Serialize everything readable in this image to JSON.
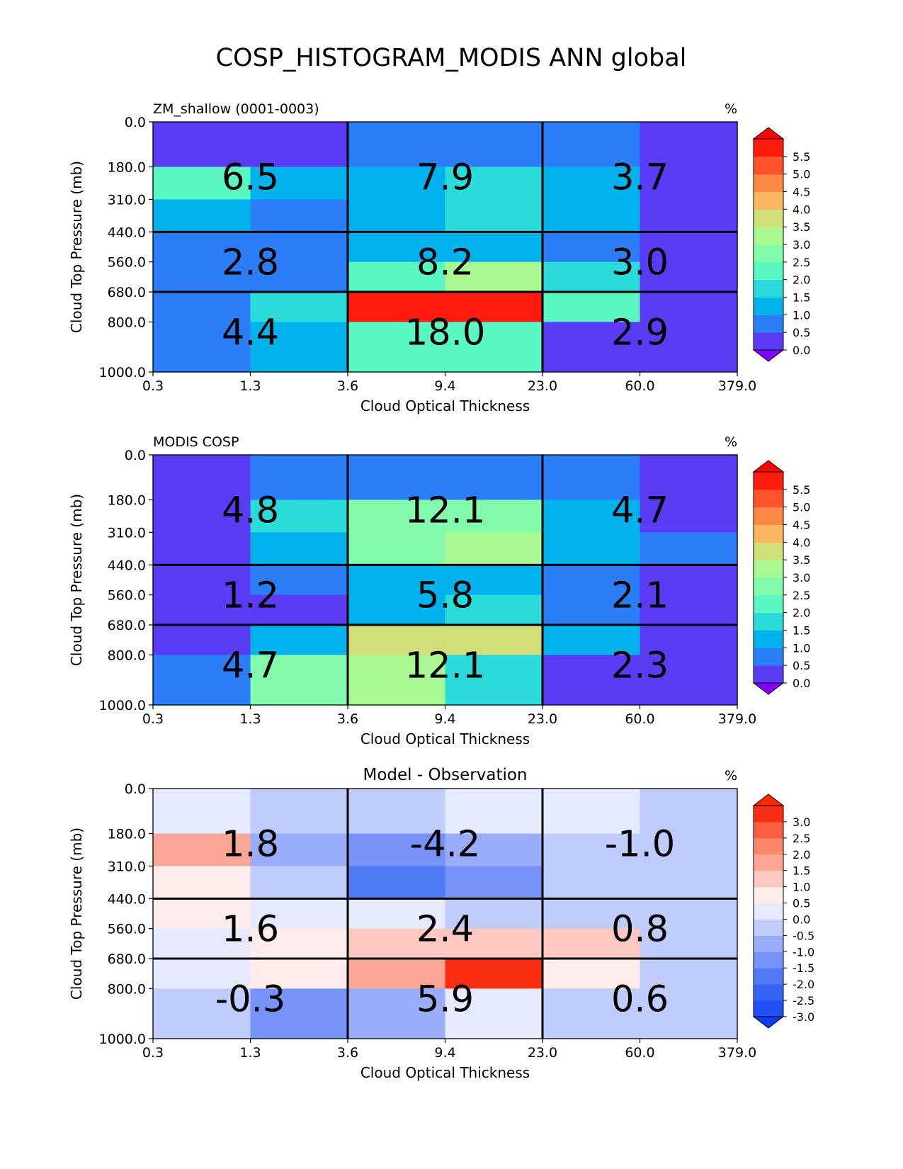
{
  "figure": {
    "title": "COSP_HISTOGRAM_MODIS ANN global"
  },
  "chart_data": [
    {
      "type": "heatmap",
      "title": "ZM_shallow (0001-0003)",
      "title_position": "left",
      "units": "%",
      "xlabel": "Cloud Optical Thickness",
      "ylabel": "Cloud Top Pressure (mb)",
      "x_ticks": [
        "0.3",
        "1.3",
        "3.6",
        "9.4",
        "23.0",
        "60.0",
        "379.0"
      ],
      "y_ticks": [
        "0.0",
        "180.0",
        "310.0",
        "440.0",
        "560.0",
        "680.0",
        "800.0",
        "1000.0"
      ],
      "cell_values": [
        [
          0.2,
          0.2,
          0.8,
          0.8,
          0.8,
          0.2
        ],
        [
          2.0,
          1.4,
          1.4,
          1.8,
          1.4,
          0.2
        ],
        [
          1.4,
          0.8,
          1.4,
          1.8,
          1.4,
          0.2
        ],
        [
          0.8,
          0.8,
          1.4,
          1.4,
          0.8,
          0.2
        ],
        [
          0.8,
          0.8,
          2.2,
          3.2,
          1.8,
          0.2
        ],
        [
          0.8,
          1.8,
          5.8,
          5.8,
          2.2,
          0.2
        ],
        [
          0.8,
          1.4,
          2.2,
          2.2,
          0.2,
          0.2
        ]
      ],
      "group_totals": [
        [
          "6.5",
          "7.9",
          "3.7"
        ],
        [
          "2.8",
          "8.2",
          "3.0"
        ],
        [
          "4.4",
          "18.0",
          "2.9"
        ]
      ],
      "colorbar": {
        "ticks": [
          "0.0",
          "0.5",
          "1.0",
          "1.5",
          "2.0",
          "2.5",
          "3.0",
          "3.5",
          "4.0",
          "4.5",
          "5.0",
          "5.5"
        ],
        "colors": [
          "#5a3cf7",
          "#2c7ef8",
          "#02b2ec",
          "#2bdbd9",
          "#59f8c3",
          "#82fcaa",
          "#aaf891",
          "#d1de79",
          "#fbb761",
          "#ff8847",
          "#ff532c",
          "#ff1c0f"
        ],
        "under_color": "#8000ff",
        "over_color": "#ff0000"
      }
    },
    {
      "type": "heatmap",
      "title": "MODIS COSP",
      "title_position": "left",
      "units": "%",
      "xlabel": "Cloud Optical Thickness",
      "ylabel": "Cloud Top Pressure (mb)",
      "x_ticks": [
        "0.3",
        "1.3",
        "3.6",
        "9.4",
        "23.0",
        "60.0",
        "379.0"
      ],
      "y_ticks": [
        "0.0",
        "180.0",
        "310.0",
        "440.0",
        "560.0",
        "680.0",
        "800.0",
        "1000.0"
      ],
      "cell_values": [
        [
          0.2,
          0.8,
          0.8,
          0.8,
          0.8,
          0.2
        ],
        [
          0.2,
          1.8,
          2.8,
          2.8,
          1.4,
          0.2
        ],
        [
          0.2,
          1.4,
          2.8,
          3.2,
          1.4,
          0.8
        ],
        [
          0.2,
          0.8,
          1.4,
          1.4,
          0.8,
          0.2
        ],
        [
          0.2,
          0.2,
          1.4,
          1.8,
          0.8,
          0.2
        ],
        [
          0.2,
          1.4,
          3.8,
          3.8,
          1.4,
          0.2
        ],
        [
          0.8,
          2.8,
          3.2,
          1.8,
          0.2,
          0.2
        ]
      ],
      "group_totals": [
        [
          "4.8",
          "12.1",
          "4.7"
        ],
        [
          "1.2",
          "5.8",
          "2.1"
        ],
        [
          "4.7",
          "12.1",
          "2.3"
        ]
      ],
      "colorbar": {
        "ticks": [
          "0.0",
          "0.5",
          "1.0",
          "1.5",
          "2.0",
          "2.5",
          "3.0",
          "3.5",
          "4.0",
          "4.5",
          "5.0",
          "5.5"
        ],
        "colors": [
          "#5a3cf7",
          "#2c7ef8",
          "#02b2ec",
          "#2bdbd9",
          "#59f8c3",
          "#82fcaa",
          "#aaf891",
          "#d1de79",
          "#fbb761",
          "#ff8847",
          "#ff532c",
          "#ff1c0f"
        ],
        "under_color": "#8000ff",
        "over_color": "#ff0000"
      }
    },
    {
      "type": "heatmap",
      "title": "Model - Observation",
      "title_position": "center",
      "units": "%",
      "xlabel": "Cloud Optical Thickness",
      "ylabel": "Cloud Top Pressure (mb)",
      "x_ticks": [
        "0.3",
        "1.3",
        "3.6",
        "9.4",
        "23.0",
        "60.0",
        "379.0"
      ],
      "y_ticks": [
        "0.0",
        "180.0",
        "310.0",
        "440.0",
        "560.0",
        "680.0",
        "800.0",
        "1000.0"
      ],
      "cell_values": [
        [
          0.2,
          -0.2,
          -0.2,
          0.2,
          0.2,
          -0.2
        ],
        [
          1.7,
          -0.8,
          -1.3,
          -0.8,
          -0.2,
          -0.2
        ],
        [
          0.7,
          -0.2,
          -1.7,
          -1.3,
          -0.2,
          -0.2
        ],
        [
          0.7,
          0.2,
          0.2,
          -0.2,
          -0.2,
          -0.2
        ],
        [
          0.2,
          0.7,
          1.2,
          1.2,
          1.2,
          -0.2
        ],
        [
          0.2,
          0.7,
          1.7,
          3.2,
          0.7,
          -0.2
        ],
        [
          -0.2,
          -1.3,
          -0.8,
          0.2,
          -0.2,
          -0.2
        ]
      ],
      "group_totals": [
        [
          "1.8",
          "-4.2",
          "-1.0"
        ],
        [
          "1.6",
          "2.4",
          "0.8"
        ],
        [
          "-0.3",
          "5.9",
          "0.6"
        ]
      ],
      "colorbar": {
        "ticks": [
          "-3.0",
          "-2.5",
          "-2.0",
          "-1.5",
          "-1.0",
          "-0.5",
          "0.0",
          "0.5",
          "1.0",
          "1.5",
          "2.0",
          "2.5",
          "3.0"
        ],
        "colors": [
          "#1f4ff5",
          "#3763f6",
          "#527bf8",
          "#7693f9",
          "#9aadfa",
          "#c0ccfb",
          "#e5eafd",
          "#fdecea",
          "#fcc8c1",
          "#fca796",
          "#fb876b",
          "#fb5d40",
          "#fb2e12"
        ],
        "under_color": "#0a3af5",
        "over_color": "#ff2a00"
      }
    }
  ]
}
